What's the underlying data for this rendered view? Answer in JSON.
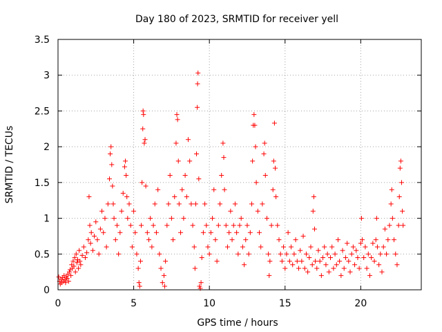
{
  "chart_data": {
    "type": "scatter",
    "title": "Day 180 of 2023, SRMTID for receiver yell",
    "xlabel": "GPS time / hours",
    "ylabel": "SRMTID / TECUs",
    "xlim": [
      0,
      24
    ],
    "ylim": [
      0,
      3.5
    ],
    "xticks": [
      0,
      5,
      10,
      15,
      20
    ],
    "xtick_labels": [
      "0",
      "5",
      "10",
      "15",
      "20"
    ],
    "yticks": [
      0,
      0.5,
      1,
      1.5,
      2,
      2.5,
      3,
      3.5
    ],
    "ytick_labels": [
      "0",
      "0.5",
      "1",
      "1.5",
      "2",
      "2.5",
      "3",
      "3.5"
    ],
    "grid": true,
    "marker": "+",
    "series": [
      {
        "name": "SRMTID",
        "color": "#ff0000",
        "points": [
          [
            0.05,
            0.18
          ],
          [
            0.1,
            0.12
          ],
          [
            0.15,
            0.08
          ],
          [
            0.2,
            0.15
          ],
          [
            0.25,
            0.1
          ],
          [
            0.3,
            0.17
          ],
          [
            0.35,
            0.12
          ],
          [
            0.4,
            0.2
          ],
          [
            0.45,
            0.14
          ],
          [
            0.5,
            0.1
          ],
          [
            0.55,
            0.18
          ],
          [
            0.6,
            0.16
          ],
          [
            0.65,
            0.22
          ],
          [
            0.7,
            0.12
          ],
          [
            0.75,
            0.25
          ],
          [
            0.8,
            0.28
          ],
          [
            0.85,
            0.2
          ],
          [
            0.9,
            0.35
          ],
          [
            0.95,
            0.3
          ],
          [
            1.0,
            0.4
          ],
          [
            1.05,
            0.33
          ],
          [
            1.1,
            0.45
          ],
          [
            1.15,
            0.25
          ],
          [
            1.2,
            0.5
          ],
          [
            1.25,
            0.38
          ],
          [
            1.3,
            0.42
          ],
          [
            1.35,
            0.3
          ],
          [
            1.4,
            0.55
          ],
          [
            1.45,
            0.4
          ],
          [
            1.5,
            0.35
          ],
          [
            1.6,
            0.48
          ],
          [
            1.7,
            0.6
          ],
          [
            1.8,
            0.45
          ],
          [
            1.9,
            0.52
          ],
          [
            2.0,
            0.7
          ],
          [
            2.05,
            1.3
          ],
          [
            2.1,
            0.9
          ],
          [
            2.15,
            0.65
          ],
          [
            2.2,
            0.8
          ],
          [
            2.3,
            0.55
          ],
          [
            2.4,
            0.75
          ],
          [
            2.5,
            0.95
          ],
          [
            2.6,
            0.7
          ],
          [
            2.7,
            0.5
          ],
          [
            2.8,
            0.85
          ],
          [
            2.9,
            1.1
          ],
          [
            3.0,
            0.8
          ],
          [
            3.1,
            1.0
          ],
          [
            3.2,
            0.6
          ],
          [
            3.3,
            1.2
          ],
          [
            3.4,
            1.55
          ],
          [
            3.45,
            1.9
          ],
          [
            3.5,
            2.0
          ],
          [
            3.55,
            1.75
          ],
          [
            3.6,
            1.45
          ],
          [
            3.65,
            1.2
          ],
          [
            3.7,
            1.0
          ],
          [
            3.8,
            0.7
          ],
          [
            3.9,
            0.9
          ],
          [
            4.0,
            0.5
          ],
          [
            4.1,
            0.8
          ],
          [
            4.2,
            1.1
          ],
          [
            4.3,
            1.35
          ],
          [
            4.4,
            1.72
          ],
          [
            4.45,
            1.8
          ],
          [
            4.5,
            1.6
          ],
          [
            4.55,
            1.3
          ],
          [
            4.6,
            1.0
          ],
          [
            4.7,
            1.2
          ],
          [
            4.8,
            0.9
          ],
          [
            4.9,
            0.6
          ],
          [
            5.0,
            1.1
          ],
          [
            5.1,
            0.8
          ],
          [
            5.2,
            0.5
          ],
          [
            5.3,
            0.3
          ],
          [
            5.35,
            0.1
          ],
          [
            5.4,
            0.05
          ],
          [
            5.45,
            0.4
          ],
          [
            5.5,
            0.9
          ],
          [
            5.55,
            1.5
          ],
          [
            5.6,
            2.25
          ],
          [
            5.62,
            2.5
          ],
          [
            5.65,
            2.45
          ],
          [
            5.7,
            2.05
          ],
          [
            5.75,
            2.1
          ],
          [
            5.8,
            1.45
          ],
          [
            5.9,
            0.8
          ],
          [
            6.0,
            0.7
          ],
          [
            6.1,
            1.0
          ],
          [
            6.2,
            0.6
          ],
          [
            6.3,
            0.9
          ],
          [
            6.4,
            1.2
          ],
          [
            6.5,
            0.8
          ],
          [
            6.6,
            1.4
          ],
          [
            6.7,
            0.5
          ],
          [
            6.8,
            0.3
          ],
          [
            6.9,
            0.1
          ],
          [
            7.0,
            0.2
          ],
          [
            7.05,
            0.05
          ],
          [
            7.1,
            0.4
          ],
          [
            7.2,
            0.9
          ],
          [
            7.3,
            1.2
          ],
          [
            7.4,
            1.6
          ],
          [
            7.5,
            1.0
          ],
          [
            7.6,
            0.7
          ],
          [
            7.7,
            1.3
          ],
          [
            7.8,
            2.05
          ],
          [
            7.85,
            2.45
          ],
          [
            7.9,
            2.38
          ],
          [
            7.95,
            1.8
          ],
          [
            8.0,
            1.2
          ],
          [
            8.1,
            0.8
          ],
          [
            8.2,
            1.4
          ],
          [
            8.3,
            1.0
          ],
          [
            8.4,
            1.6
          ],
          [
            8.5,
            1.3
          ],
          [
            8.6,
            2.1
          ],
          [
            8.7,
            1.8
          ],
          [
            8.8,
            1.2
          ],
          [
            8.9,
            0.9
          ],
          [
            9.0,
            0.6
          ],
          [
            9.05,
            0.3
          ],
          [
            9.1,
            1.2
          ],
          [
            9.15,
            1.9
          ],
          [
            9.2,
            2.55
          ],
          [
            9.22,
            2.88
          ],
          [
            9.25,
            3.03
          ],
          [
            9.3,
            1.55
          ],
          [
            9.35,
            0.05
          ],
          [
            9.4,
            0.02
          ],
          [
            9.45,
            0.1
          ],
          [
            9.5,
            0.45
          ],
          [
            9.6,
            0.8
          ],
          [
            9.7,
            1.2
          ],
          [
            9.8,
            0.9
          ],
          [
            9.9,
            0.6
          ],
          [
            10.0,
            0.5
          ],
          [
            10.1,
            0.8
          ],
          [
            10.2,
            1.0
          ],
          [
            10.3,
            1.4
          ],
          [
            10.4,
            0.7
          ],
          [
            10.5,
            0.4
          ],
          [
            10.6,
            0.9
          ],
          [
            10.7,
            1.2
          ],
          [
            10.8,
            1.6
          ],
          [
            10.9,
            2.05
          ],
          [
            10.95,
            1.85
          ],
          [
            11.0,
            1.4
          ],
          [
            11.1,
            0.9
          ],
          [
            11.2,
            0.6
          ],
          [
            11.3,
            0.8
          ],
          [
            11.4,
            1.1
          ],
          [
            11.5,
            0.7
          ],
          [
            11.6,
            0.9
          ],
          [
            11.7,
            1.2
          ],
          [
            11.8,
            0.8
          ],
          [
            11.9,
            0.5
          ],
          [
            12.0,
            0.9
          ],
          [
            12.1,
            1.0
          ],
          [
            12.2,
            0.6
          ],
          [
            12.3,
            0.35
          ],
          [
            12.4,
            0.7
          ],
          [
            12.5,
            0.9
          ],
          [
            12.6,
            0.5
          ],
          [
            12.7,
            0.8
          ],
          [
            12.8,
            1.2
          ],
          [
            12.85,
            1.8
          ],
          [
            12.9,
            2.3
          ],
          [
            12.95,
            2.45
          ],
          [
            13.0,
            2.3
          ],
          [
            13.05,
            2.0
          ],
          [
            13.1,
            1.5
          ],
          [
            13.2,
            1.1
          ],
          [
            13.3,
            0.8
          ],
          [
            13.4,
            0.6
          ],
          [
            13.5,
            1.2
          ],
          [
            13.6,
            1.9
          ],
          [
            13.65,
            2.05
          ],
          [
            13.7,
            1.6
          ],
          [
            13.8,
            1.0
          ],
          [
            13.9,
            0.5
          ],
          [
            13.95,
            0.2
          ],
          [
            14.0,
            0.4
          ],
          [
            14.1,
            0.9
          ],
          [
            14.2,
            1.4
          ],
          [
            14.25,
            1.8
          ],
          [
            14.3,
            2.33
          ],
          [
            14.35,
            1.7
          ],
          [
            14.4,
            1.3
          ],
          [
            14.5,
            0.9
          ],
          [
            14.6,
            0.7
          ],
          [
            14.7,
            0.5
          ],
          [
            14.8,
            0.4
          ],
          [
            14.9,
            0.6
          ],
          [
            15.0,
            0.3
          ],
          [
            15.1,
            0.5
          ],
          [
            15.2,
            0.8
          ],
          [
            15.3,
            0.4
          ],
          [
            15.4,
            0.6
          ],
          [
            15.5,
            0.35
          ],
          [
            15.6,
            0.5
          ],
          [
            15.7,
            0.7
          ],
          [
            15.8,
            0.4
          ],
          [
            15.9,
            0.3
          ],
          [
            16.0,
            0.55
          ],
          [
            16.1,
            0.4
          ],
          [
            16.2,
            0.75
          ],
          [
            16.3,
            0.3
          ],
          [
            16.4,
            0.5
          ],
          [
            16.5,
            0.25
          ],
          [
            16.6,
            0.45
          ],
          [
            16.7,
            0.6
          ],
          [
            16.8,
            0.35
          ],
          [
            16.85,
            1.1
          ],
          [
            16.9,
            1.3
          ],
          [
            16.95,
            0.85
          ],
          [
            17.0,
            0.4
          ],
          [
            17.1,
            0.3
          ],
          [
            17.2,
            0.55
          ],
          [
            17.3,
            0.4
          ],
          [
            17.4,
            0.2
          ],
          [
            17.5,
            0.45
          ],
          [
            17.6,
            0.6
          ],
          [
            17.7,
            0.35
          ],
          [
            17.8,
            0.5
          ],
          [
            17.9,
            0.25
          ],
          [
            18.0,
            0.45
          ],
          [
            18.1,
            0.6
          ],
          [
            18.2,
            0.3
          ],
          [
            18.3,
            0.5
          ],
          [
            18.4,
            0.35
          ],
          [
            18.5,
            0.7
          ],
          [
            18.6,
            0.4
          ],
          [
            18.7,
            0.2
          ],
          [
            18.8,
            0.55
          ],
          [
            18.9,
            0.3
          ],
          [
            19.0,
            0.45
          ],
          [
            19.1,
            0.65
          ],
          [
            19.2,
            0.4
          ],
          [
            19.3,
            0.25
          ],
          [
            19.4,
            0.5
          ],
          [
            19.5,
            0.6
          ],
          [
            19.6,
            0.35
          ],
          [
            19.7,
            0.55
          ],
          [
            19.8,
            0.45
          ],
          [
            19.9,
            0.3
          ],
          [
            20.0,
            0.65
          ],
          [
            20.05,
            1.0
          ],
          [
            20.1,
            0.7
          ],
          [
            20.2,
            0.45
          ],
          [
            20.3,
            0.6
          ],
          [
            20.4,
            0.3
          ],
          [
            20.5,
            0.5
          ],
          [
            20.6,
            0.2
          ],
          [
            20.7,
            0.45
          ],
          [
            20.8,
            0.65
          ],
          [
            20.9,
            0.4
          ],
          [
            21.0,
            0.7
          ],
          [
            21.05,
            1.0
          ],
          [
            21.1,
            0.6
          ],
          [
            21.2,
            0.35
          ],
          [
            21.3,
            0.5
          ],
          [
            21.4,
            0.25
          ],
          [
            21.5,
            0.6
          ],
          [
            21.6,
            0.85
          ],
          [
            21.7,
            0.5
          ],
          [
            21.8,
            0.7
          ],
          [
            21.9,
            0.9
          ],
          [
            22.0,
            1.2
          ],
          [
            22.05,
            1.4
          ],
          [
            22.1,
            1.0
          ],
          [
            22.2,
            0.7
          ],
          [
            22.3,
            0.5
          ],
          [
            22.4,
            0.35
          ],
          [
            22.5,
            0.9
          ],
          [
            22.55,
            1.3
          ],
          [
            22.6,
            1.7
          ],
          [
            22.65,
            1.8
          ],
          [
            22.7,
            1.5
          ],
          [
            22.75,
            1.1
          ],
          [
            22.8,
            0.9
          ]
        ]
      }
    ]
  }
}
